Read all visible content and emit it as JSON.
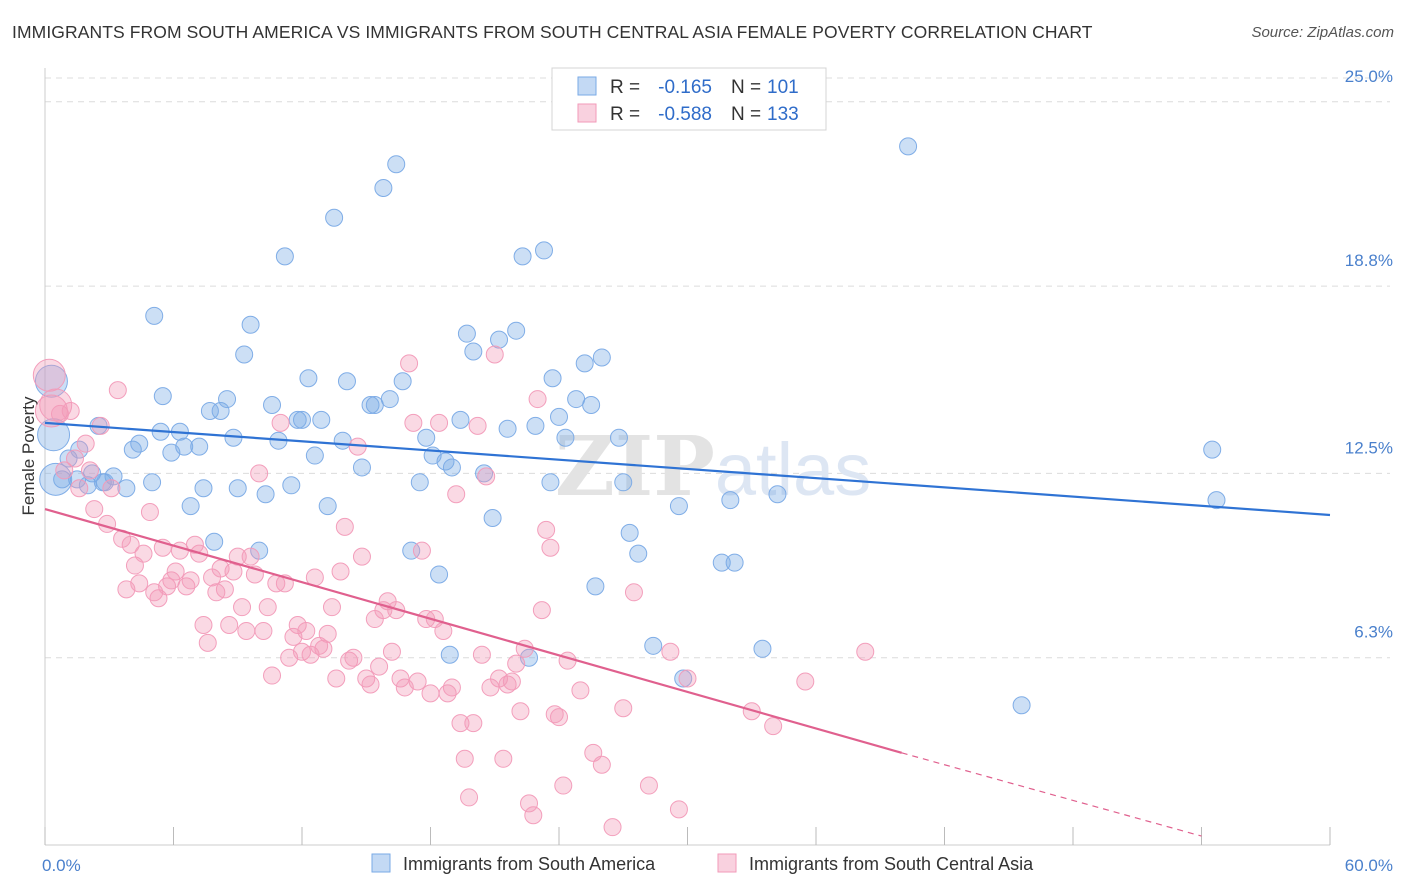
{
  "chart_data": {
    "type": "scatter",
    "title": "IMMIGRANTS FROM SOUTH AMERICA VS IMMIGRANTS FROM SOUTH CENTRAL ASIA FEMALE POVERTY CORRELATION CHART",
    "source": "Source: ZipAtlas.com",
    "xlabel": "",
    "ylabel": "Female Poverty",
    "xlim": [
      0,
      60
    ],
    "ylim": [
      0,
      25.8
    ],
    "x_tick_labels": [
      "0.0%",
      "60.0%"
    ],
    "y_ticks": [
      6.3,
      12.5,
      18.8,
      25.0
    ],
    "y_tick_labels": [
      "6.3%",
      "12.5%",
      "18.8%",
      "25.0%"
    ],
    "grid": "horizontal dashed",
    "watermark": "ZIPatlas",
    "legend_position": "top-center",
    "legend": [
      {
        "r_label": "R =",
        "r_value": "-0.165",
        "n_label": "N =",
        "n_value": "101"
      },
      {
        "r_label": "R =",
        "r_value": "-0.588",
        "n_label": "N =",
        "n_value": "133"
      }
    ],
    "series": [
      {
        "name": "Immigrants from South America",
        "color": "#7aaae6",
        "line_color": "#2f73d4",
        "trend": {
          "x": [
            0,
            60
          ],
          "y": [
            14.2,
            11.1
          ]
        },
        "points": [
          [
            0.3,
            15.6
          ],
          [
            0.4,
            13.8
          ],
          [
            0.8,
            12.3
          ],
          [
            1.1,
            13.0
          ],
          [
            1.5,
            12.3
          ],
          [
            1.6,
            13.3
          ],
          [
            2.0,
            12.1
          ],
          [
            2.2,
            12.5
          ],
          [
            2.5,
            14.1
          ],
          [
            2.7,
            12.2
          ],
          [
            3.2,
            12.4
          ],
          [
            3.8,
            12.0
          ],
          [
            4.1,
            13.3
          ],
          [
            4.4,
            13.5
          ],
          [
            5.0,
            12.2
          ],
          [
            5.1,
            17.8
          ],
          [
            5.4,
            13.9
          ],
          [
            5.5,
            15.1
          ],
          [
            5.9,
            13.2
          ],
          [
            6.3,
            13.9
          ],
          [
            6.5,
            13.4
          ],
          [
            6.8,
            11.4
          ],
          [
            7.2,
            13.4
          ],
          [
            7.4,
            12.0
          ],
          [
            7.7,
            14.6
          ],
          [
            7.9,
            10.2
          ],
          [
            8.2,
            14.6
          ],
          [
            8.5,
            15.0
          ],
          [
            8.8,
            13.7
          ],
          [
            9.0,
            12.0
          ],
          [
            9.3,
            16.5
          ],
          [
            9.6,
            17.5
          ],
          [
            10.0,
            9.9
          ],
          [
            10.3,
            11.8
          ],
          [
            10.6,
            14.8
          ],
          [
            10.9,
            13.6
          ],
          [
            11.2,
            19.8
          ],
          [
            11.5,
            12.1
          ],
          [
            11.8,
            14.3
          ],
          [
            12.0,
            14.3
          ],
          [
            12.3,
            15.7
          ],
          [
            12.6,
            13.1
          ],
          [
            12.9,
            14.3
          ],
          [
            13.2,
            11.4
          ],
          [
            13.5,
            21.1
          ],
          [
            13.9,
            13.6
          ],
          [
            14.1,
            15.6
          ],
          [
            14.8,
            12.7
          ],
          [
            15.2,
            14.8
          ],
          [
            15.4,
            14.8
          ],
          [
            15.8,
            22.1
          ],
          [
            16.1,
            15.0
          ],
          [
            16.4,
            22.9
          ],
          [
            16.7,
            15.6
          ],
          [
            17.1,
            9.9
          ],
          [
            17.5,
            12.2
          ],
          [
            17.8,
            13.7
          ],
          [
            18.1,
            13.1
          ],
          [
            18.4,
            9.1
          ],
          [
            18.7,
            12.9
          ],
          [
            18.9,
            6.4
          ],
          [
            19.0,
            12.7
          ],
          [
            19.4,
            14.3
          ],
          [
            19.7,
            17.2
          ],
          [
            20.0,
            16.6
          ],
          [
            20.5,
            12.5
          ],
          [
            20.9,
            11.0
          ],
          [
            21.2,
            17.0
          ],
          [
            21.6,
            14.0
          ],
          [
            22.0,
            17.3
          ],
          [
            22.3,
            19.8
          ],
          [
            22.6,
            6.3
          ],
          [
            22.9,
            14.1
          ],
          [
            23.3,
            20.0
          ],
          [
            23.6,
            12.2
          ],
          [
            23.7,
            15.7
          ],
          [
            24.0,
            14.4
          ],
          [
            24.3,
            13.7
          ],
          [
            24.8,
            15.0
          ],
          [
            25.2,
            16.2
          ],
          [
            25.5,
            14.8
          ],
          [
            25.7,
            8.7
          ],
          [
            26.0,
            16.4
          ],
          [
            26.8,
            13.7
          ],
          [
            27.0,
            12.2
          ],
          [
            27.3,
            10.5
          ],
          [
            27.7,
            9.8
          ],
          [
            28.4,
            6.7
          ],
          [
            29.6,
            11.4
          ],
          [
            29.8,
            5.6
          ],
          [
            31.6,
            9.5
          ],
          [
            32.0,
            11.6
          ],
          [
            32.2,
            9.5
          ],
          [
            33.5,
            6.6
          ],
          [
            34.2,
            11.8
          ],
          [
            40.3,
            23.5
          ],
          [
            45.6,
            4.7
          ],
          [
            54.5,
            13.3
          ],
          [
            54.7,
            11.6
          ],
          [
            0.5,
            12.3
          ],
          [
            2.8,
            12.2
          ]
        ]
      },
      {
        "name": "Immigrants from South Central Asia",
        "color": "#f29ab8",
        "line_color": "#e0608e",
        "trend": {
          "x": [
            0,
            40
          ],
          "y": [
            11.3,
            3.1
          ]
        },
        "trend_dashed": {
          "x": [
            40,
            54
          ],
          "y": [
            3.1,
            0.3
          ]
        },
        "points": [
          [
            0.2,
            15.8
          ],
          [
            0.3,
            14.6
          ],
          [
            0.5,
            14.8
          ],
          [
            0.7,
            14.5
          ],
          [
            0.9,
            12.6
          ],
          [
            1.2,
            14.6
          ],
          [
            1.4,
            13.0
          ],
          [
            1.6,
            12.0
          ],
          [
            1.9,
            13.5
          ],
          [
            2.1,
            12.6
          ],
          [
            2.3,
            11.3
          ],
          [
            2.6,
            14.1
          ],
          [
            2.9,
            10.8
          ],
          [
            3.1,
            12.0
          ],
          [
            3.4,
            15.3
          ],
          [
            3.6,
            10.3
          ],
          [
            3.8,
            8.6
          ],
          [
            4.0,
            10.1
          ],
          [
            4.2,
            9.4
          ],
          [
            4.4,
            8.8
          ],
          [
            4.6,
            9.8
          ],
          [
            4.9,
            11.2
          ],
          [
            5.1,
            8.5
          ],
          [
            5.3,
            8.3
          ],
          [
            5.5,
            10.0
          ],
          [
            5.7,
            8.7
          ],
          [
            5.9,
            8.9
          ],
          [
            6.1,
            9.2
          ],
          [
            6.3,
            9.9
          ],
          [
            6.6,
            8.7
          ],
          [
            6.8,
            8.9
          ],
          [
            7.0,
            10.1
          ],
          [
            7.2,
            9.8
          ],
          [
            7.4,
            7.4
          ],
          [
            7.6,
            6.8
          ],
          [
            7.8,
            9.0
          ],
          [
            8.0,
            8.5
          ],
          [
            8.2,
            9.3
          ],
          [
            8.4,
            8.6
          ],
          [
            8.6,
            7.4
          ],
          [
            8.8,
            9.2
          ],
          [
            9.0,
            9.7
          ],
          [
            9.2,
            8.0
          ],
          [
            9.4,
            7.2
          ],
          [
            9.6,
            9.7
          ],
          [
            9.8,
            9.1
          ],
          [
            10.0,
            12.5
          ],
          [
            10.2,
            7.2
          ],
          [
            10.4,
            8.0
          ],
          [
            10.6,
            5.7
          ],
          [
            10.8,
            8.8
          ],
          [
            11.0,
            14.2
          ],
          [
            11.2,
            8.8
          ],
          [
            11.4,
            6.3
          ],
          [
            11.6,
            7.0
          ],
          [
            11.8,
            7.4
          ],
          [
            12.0,
            6.5
          ],
          [
            12.2,
            7.2
          ],
          [
            12.4,
            6.4
          ],
          [
            12.6,
            9.0
          ],
          [
            12.8,
            6.7
          ],
          [
            13.0,
            6.6
          ],
          [
            13.2,
            7.1
          ],
          [
            13.4,
            8.0
          ],
          [
            13.6,
            5.6
          ],
          [
            13.8,
            9.2
          ],
          [
            14.0,
            10.7
          ],
          [
            14.2,
            6.2
          ],
          [
            14.4,
            6.3
          ],
          [
            14.6,
            13.4
          ],
          [
            14.8,
            9.7
          ],
          [
            15.0,
            5.6
          ],
          [
            15.2,
            5.4
          ],
          [
            15.4,
            7.6
          ],
          [
            15.6,
            6.0
          ],
          [
            15.8,
            7.9
          ],
          [
            16.0,
            8.2
          ],
          [
            16.2,
            6.5
          ],
          [
            16.4,
            7.9
          ],
          [
            16.6,
            5.6
          ],
          [
            16.8,
            5.3
          ],
          [
            17.0,
            16.2
          ],
          [
            17.2,
            14.2
          ],
          [
            17.4,
            5.5
          ],
          [
            17.6,
            9.9
          ],
          [
            17.8,
            7.6
          ],
          [
            18.0,
            5.1
          ],
          [
            18.2,
            7.6
          ],
          [
            18.4,
            14.2
          ],
          [
            18.6,
            7.2
          ],
          [
            18.8,
            5.1
          ],
          [
            19.0,
            5.3
          ],
          [
            19.2,
            11.8
          ],
          [
            19.4,
            4.1
          ],
          [
            19.6,
            2.9
          ],
          [
            19.8,
            1.6
          ],
          [
            20.0,
            4.1
          ],
          [
            20.2,
            14.1
          ],
          [
            20.4,
            6.4
          ],
          [
            20.6,
            12.4
          ],
          [
            20.8,
            5.3
          ],
          [
            21.0,
            16.5
          ],
          [
            21.2,
            5.6
          ],
          [
            21.4,
            2.9
          ],
          [
            21.6,
            5.4
          ],
          [
            21.8,
            5.5
          ],
          [
            22.0,
            6.1
          ],
          [
            22.2,
            4.5
          ],
          [
            22.4,
            6.6
          ],
          [
            22.6,
            1.4
          ],
          [
            22.8,
            1.0
          ],
          [
            23.0,
            15.0
          ],
          [
            23.2,
            7.9
          ],
          [
            23.4,
            10.6
          ],
          [
            23.6,
            10.0
          ],
          [
            23.8,
            4.4
          ],
          [
            24.0,
            4.3
          ],
          [
            24.2,
            2.0
          ],
          [
            24.4,
            6.2
          ],
          [
            25.0,
            5.2
          ],
          [
            25.6,
            3.1
          ],
          [
            26.0,
            2.7
          ],
          [
            26.5,
            0.6
          ],
          [
            27.0,
            4.6
          ],
          [
            27.5,
            8.5
          ],
          [
            28.2,
            2.0
          ],
          [
            29.2,
            6.5
          ],
          [
            29.6,
            1.2
          ],
          [
            30.0,
            5.6
          ],
          [
            33.0,
            4.5
          ],
          [
            34.0,
            4.0
          ],
          [
            35.5,
            5.5
          ],
          [
            38.3,
            6.5
          ]
        ]
      }
    ]
  }
}
